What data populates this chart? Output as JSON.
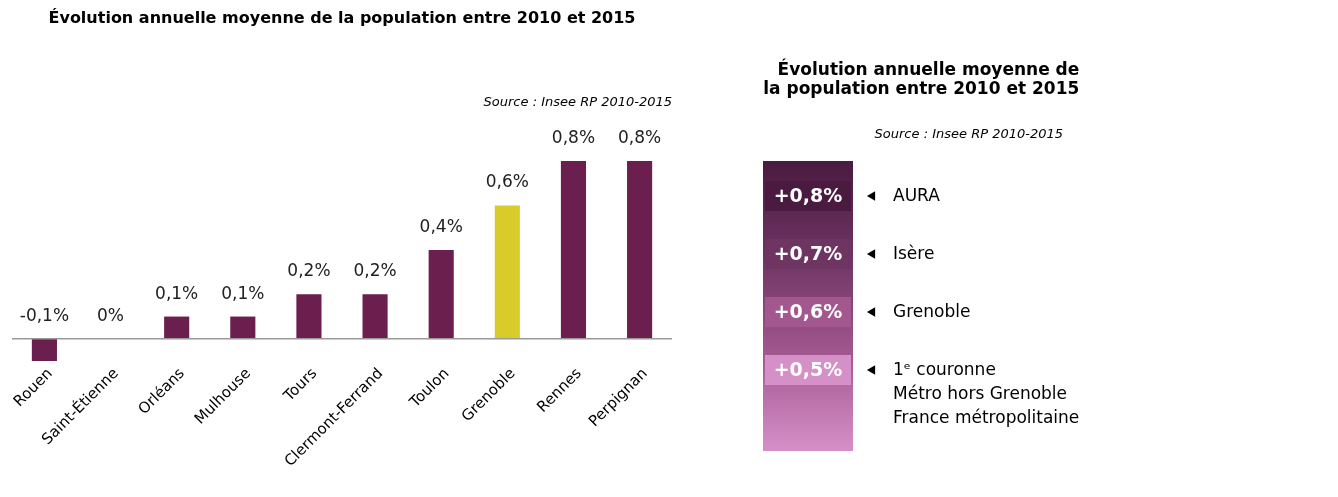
{
  "chart_data": [
    {
      "type": "bar",
      "title": "Évolution annuelle moyenne de la population entre 2010 et 2015",
      "annotations": [
        "Source : Insee RP 2010-2015"
      ],
      "categories": [
        "Rouen",
        "Saint-Étienne",
        "Orléans",
        "Mulhouse",
        "Tours",
        "Clermont-Ferrand",
        "Toulon",
        "Grenoble",
        "Rennes",
        "Perpignan"
      ],
      "values": [
        -0.1,
        0,
        0.1,
        0.1,
        0.2,
        0.2,
        0.4,
        0.6,
        0.8,
        0.8
      ],
      "value_labels": [
        "-0,1%",
        "0%",
        "0,1%",
        "0,1%",
        "0,2%",
        "0,2%",
        "0,4%",
        "0,6%",
        "0,8%",
        "0,8%"
      ],
      "colors": [
        "#6b1f4f",
        "#6b1f4f",
        "#6b1f4f",
        "#6b1f4f",
        "#6b1f4f",
        "#6b1f4f",
        "#6b1f4f",
        "#d9cb2a",
        "#6b1f4f",
        "#6b1f4f"
      ],
      "grid": false
    },
    {
      "type": "other",
      "title": "Évolution annuelle moyenne de la population entre 2010 et 2015",
      "annotations": [
        "Source : Insee RP 2010-2015"
      ],
      "categories": [
        "AURA",
        "Isère",
        "Grenoble",
        "1ᵉ couronne\nMétro hors Grenoble\nFrance métropolitaine"
      ],
      "values": [
        0.8,
        0.7,
        0.6,
        0.5
      ],
      "value_labels": [
        "+0,8%",
        "+0,7%",
        "+0,6%",
        "+0,5%"
      ],
      "colors": [
        "#4a1a40",
        "#6e3563",
        "#a2578f",
        "#d690c8"
      ]
    }
  ]
}
